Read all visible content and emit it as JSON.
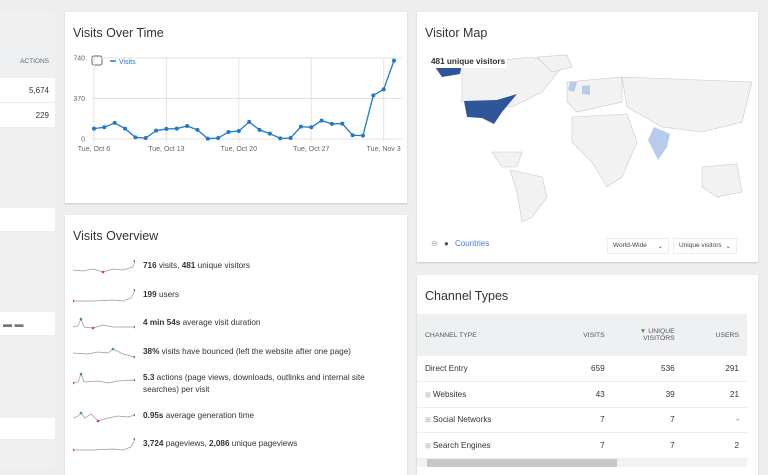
{
  "left_panel": {
    "header": "ACTIONS",
    "values": [
      "5,674",
      "229"
    ]
  },
  "visits_over_time": {
    "title": "Visits Over Time",
    "legend": "Visits",
    "chart_data": {
      "type": "line",
      "series": [
        {
          "name": "Visits",
          "values": [
            95,
            107,
            147,
            95,
            15,
            9,
            76,
            92,
            95,
            119,
            83,
            3,
            9,
            64,
            73,
            156,
            83,
            49,
            6,
            9,
            113,
            107,
            168,
            138,
            141,
            34,
            31,
            398,
            453,
            716
          ]
        }
      ],
      "x_start": "Oct 6",
      "x_ticks": [
        "Tue, Oct 6",
        "Tue, Oct 13",
        "Tue, Oct 20",
        "Tue, Oct 27",
        "Tue, Nov 3"
      ],
      "y_ticks": [
        "0",
        "370",
        "740"
      ],
      "ylim": [
        0,
        740
      ],
      "grid": true,
      "color": "#1f78c8"
    }
  },
  "visits_overview": {
    "title": "Visits Overview",
    "rows": [
      {
        "b1": "716",
        "t1": " visits, ",
        "b2": "481",
        "t2": " unique visitors"
      },
      {
        "b1": "199",
        "t1": " users"
      },
      {
        "b1": "4 min 54s",
        "t1": " average visit duration"
      },
      {
        "b1": "38%",
        "t1": " visits have bounced (left the website after one page)"
      },
      {
        "b1": "5.3",
        "t1": " actions (page views, downloads, outlinks and internal site searches) per visit"
      },
      {
        "b1": "0.95s",
        "t1": " average generation time"
      },
      {
        "b1": "3,724",
        "t1": " pageviews, ",
        "b2": "2,086",
        "t2": " unique pageviews"
      }
    ]
  },
  "visitor_map": {
    "title": "Visitor Map",
    "tooltip": "481 unique visitors",
    "countries_link": "Countries",
    "region_select": "World-Wide",
    "metric_select": "Unique visitors",
    "colors": {
      "high": "#2d5597",
      "low": "#b7cbea",
      "none": "#f2f2f2"
    }
  },
  "channel_types": {
    "title": "Channel Types",
    "columns": [
      "CHANNEL TYPE",
      "VISITS",
      "UNIQUE VISITORS",
      "USERS"
    ],
    "rows": [
      {
        "name": "Direct Entry",
        "visits": "659",
        "unique": "536",
        "users": "291"
      },
      {
        "name": "Websites",
        "visits": "43",
        "unique": "39",
        "users": "21"
      },
      {
        "name": "Social Networks",
        "visits": "7",
        "unique": "7",
        "users": "-"
      },
      {
        "name": "Search Engines",
        "visits": "7",
        "unique": "7",
        "users": "2"
      }
    ]
  }
}
